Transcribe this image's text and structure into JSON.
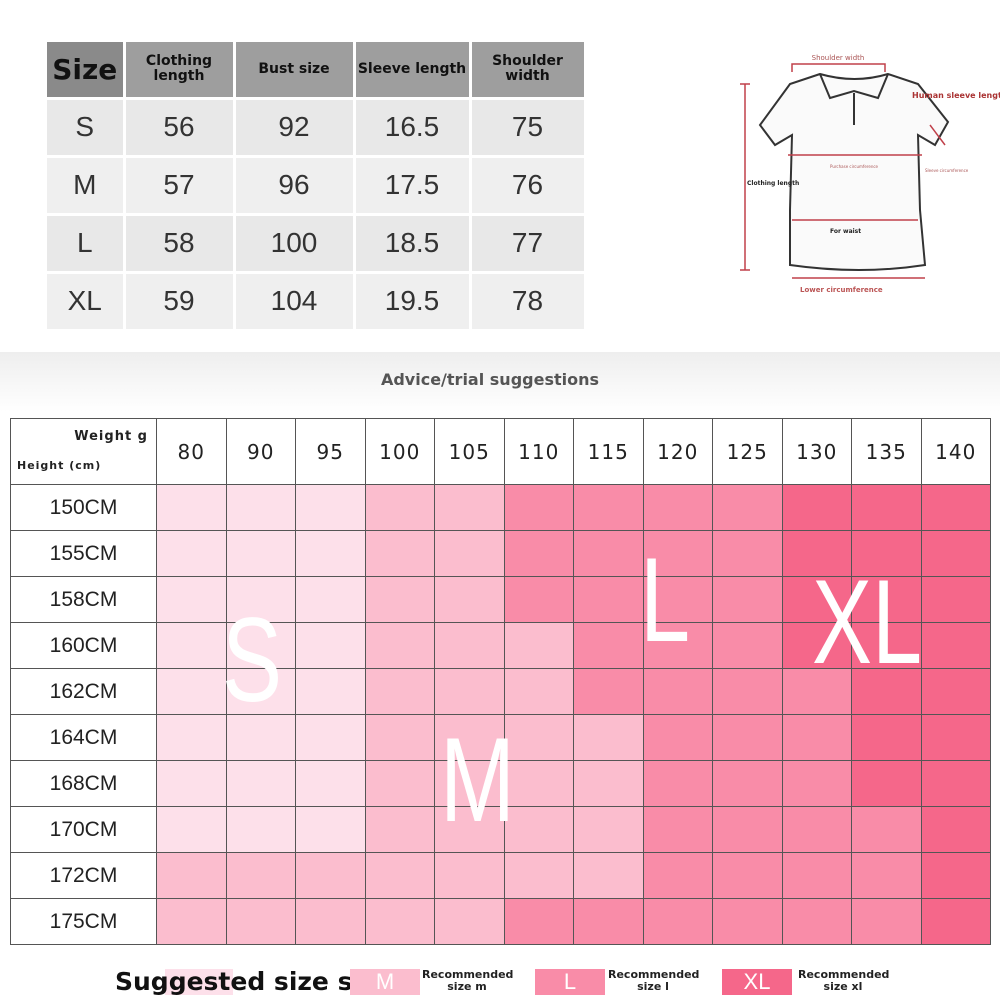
{
  "size_table": {
    "headers": [
      "Size",
      "Clothing length",
      "Bust size",
      "Sleeve length",
      "Shoulder width"
    ],
    "rows": [
      [
        "S",
        "56",
        "92",
        "16.5",
        "75"
      ],
      [
        "M",
        "57",
        "96",
        "17.5",
        "76"
      ],
      [
        "L",
        "58",
        "100",
        "18.5",
        "77"
      ],
      [
        "XL",
        "59",
        "104",
        "19.5",
        "78"
      ]
    ]
  },
  "diagram": {
    "shoulder_width": "Shoulder width",
    "sleeve_length": "Human sleeve length",
    "bust": "Purchase circumference",
    "sleeve_circ": "Sleeve circumference",
    "clothing_length": "Clothing length",
    "waist": "For waist",
    "lower": "Lower circumference"
  },
  "advice_title": "Advice/trial suggestions",
  "grid": {
    "weight_label": "Weight g",
    "height_label": "Height (cm)",
    "weights": [
      "80",
      "90",
      "95",
      "100",
      "105",
      "110",
      "115",
      "120",
      "125",
      "130",
      "135",
      "140"
    ],
    "heights": [
      "150CM",
      "155CM",
      "158CM",
      "160CM",
      "162CM",
      "164CM",
      "168CM",
      "170CM",
      "172CM",
      "175CM"
    ],
    "sizes": [
      [
        "S",
        "S",
        "S",
        "M",
        "M",
        "L",
        "L",
        "L",
        "L",
        "XL",
        "XL",
        "XL"
      ],
      [
        "S",
        "S",
        "S",
        "M",
        "M",
        "L",
        "L",
        "L",
        "L",
        "XL",
        "XL",
        "XL"
      ],
      [
        "S",
        "S",
        "S",
        "M",
        "M",
        "L",
        "L",
        "L",
        "L",
        "XL",
        "XL",
        "XL"
      ],
      [
        "S",
        "S",
        "S",
        "M",
        "M",
        "M",
        "L",
        "L",
        "L",
        "XL",
        "XL",
        "XL"
      ],
      [
        "S",
        "S",
        "S",
        "M",
        "M",
        "M",
        "L",
        "L",
        "L",
        "L",
        "XL",
        "XL"
      ],
      [
        "S",
        "S",
        "S",
        "M",
        "M",
        "M",
        "M",
        "L",
        "L",
        "L",
        "XL",
        "XL"
      ],
      [
        "S",
        "S",
        "S",
        "M",
        "M",
        "M",
        "M",
        "L",
        "L",
        "L",
        "XL",
        "XL"
      ],
      [
        "S",
        "S",
        "S",
        "M",
        "M",
        "M",
        "M",
        "L",
        "L",
        "L",
        "L",
        "XL"
      ],
      [
        "M",
        "M",
        "M",
        "M",
        "M",
        "M",
        "M",
        "L",
        "L",
        "L",
        "L",
        "XL"
      ],
      [
        "M",
        "M",
        "M",
        "M",
        "M",
        "L",
        "L",
        "L",
        "L",
        "L",
        "L",
        "XL"
      ]
    ],
    "labels": {
      "S": "S",
      "M": "M",
      "L": "L",
      "XL": "XL"
    },
    "colors": {
      "S": "#fde0ea",
      "M": "#fbbdce",
      "L": "#f98ca8",
      "XL": "#f5678a"
    }
  },
  "legend": {
    "title": "Suggested size s",
    "items": [
      {
        "swatch": "M",
        "text": "Recommended size m"
      },
      {
        "swatch": "L",
        "text": "Recommended size l"
      },
      {
        "swatch": "XL",
        "text": "Recommended size xl"
      }
    ]
  }
}
